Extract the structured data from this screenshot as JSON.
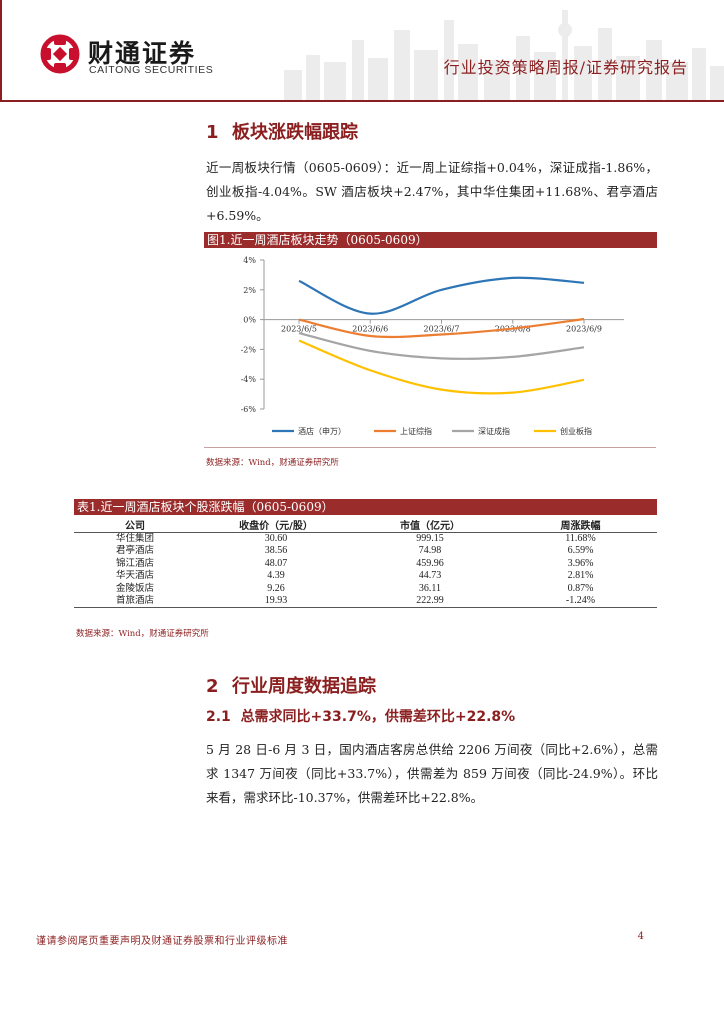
{
  "header": {
    "company_cn": "财通证券",
    "company_en": "CAITONG SECURITIES",
    "report_type": "行业投资策略周报/证券研究报告"
  },
  "section1": {
    "number": "1",
    "title": "板块涨跌幅跟踪",
    "paragraph": "近一周板块行情（0605-0609）：近一周上证综指+0.04%，深证成指-1.86%，创业板指-4.04%。SW 酒店板块+2.47%，其中华住集团+11.68%、君亭酒店+6.59%。"
  },
  "figure1": {
    "caption": "图1.近一周酒店板块走势（0605-0609）",
    "source": "数据来源：Wind，财通证券研究所"
  },
  "chart_data": {
    "type": "line",
    "title": "",
    "xlabel": "",
    "ylabel": "",
    "x": [
      "2023/6/5",
      "2023/6/6",
      "2023/6/7",
      "2023/6/8",
      "2023/6/9"
    ],
    "ylim": [
      -6,
      4
    ],
    "yticks": [
      "4%",
      "2%",
      "0%",
      "-2%",
      "-4%",
      "-6%"
    ],
    "ytick_values": [
      4,
      2,
      0,
      -2,
      -4,
      -6
    ],
    "grid": false,
    "legend_position": "bottom",
    "series": [
      {
        "name": "酒店（申万）",
        "color": "#2e75b6",
        "values": [
          2.6,
          0.4,
          2.0,
          2.8,
          2.47
        ]
      },
      {
        "name": "上证综指",
        "color": "#ed7d31",
        "values": [
          0.0,
          -1.1,
          -1.0,
          -0.6,
          0.04
        ]
      },
      {
        "name": "深证成指",
        "color": "#a5a5a5",
        "values": [
          -0.9,
          -2.1,
          -2.6,
          -2.5,
          -1.86
        ]
      },
      {
        "name": "创业板指",
        "color": "#ffc000",
        "values": [
          -1.4,
          -3.4,
          -4.7,
          -4.9,
          -4.04
        ]
      }
    ]
  },
  "table1": {
    "caption": "表1.近一周酒店板块个股涨跌幅（0605-0609）",
    "headers": [
      "公司",
      "收盘价（元/股）",
      "市值（亿元）",
      "周涨跌幅"
    ],
    "rows": [
      [
        "华住集团",
        "30.60",
        "999.15",
        "11.68%"
      ],
      [
        "君亭酒店",
        "38.56",
        "74.98",
        "6.59%"
      ],
      [
        "锦江酒店",
        "48.07",
        "459.96",
        "3.96%"
      ],
      [
        "华天酒店",
        "4.39",
        "44.73",
        "2.81%"
      ],
      [
        "金陵饭店",
        "9.26",
        "36.11",
        "0.87%"
      ],
      [
        "首旅酒店",
        "19.93",
        "222.99",
        "-1.24%"
      ]
    ],
    "source": "数据来源：Wind，财通证券研究所"
  },
  "section2": {
    "number": "2",
    "title": "行业周度数据追踪",
    "sub_number": "2.1",
    "sub_title": "总需求同比+33.7%，供需差环比+22.8%",
    "paragraph": "5 月 28 日-6 月 3 日，国内酒店客房总供给 2206 万间夜（同比+2.6%），总需求 1347 万间夜（同比+33.7%），供需差为 859 万间夜（同比-24.9%）。环比来看，需求环比-10.37%，供需差环比+22.8%。"
  },
  "footer": {
    "disclaimer": "谨请参阅尾页重要声明及财通证券股票和行业评级标准",
    "page_number": "4"
  }
}
